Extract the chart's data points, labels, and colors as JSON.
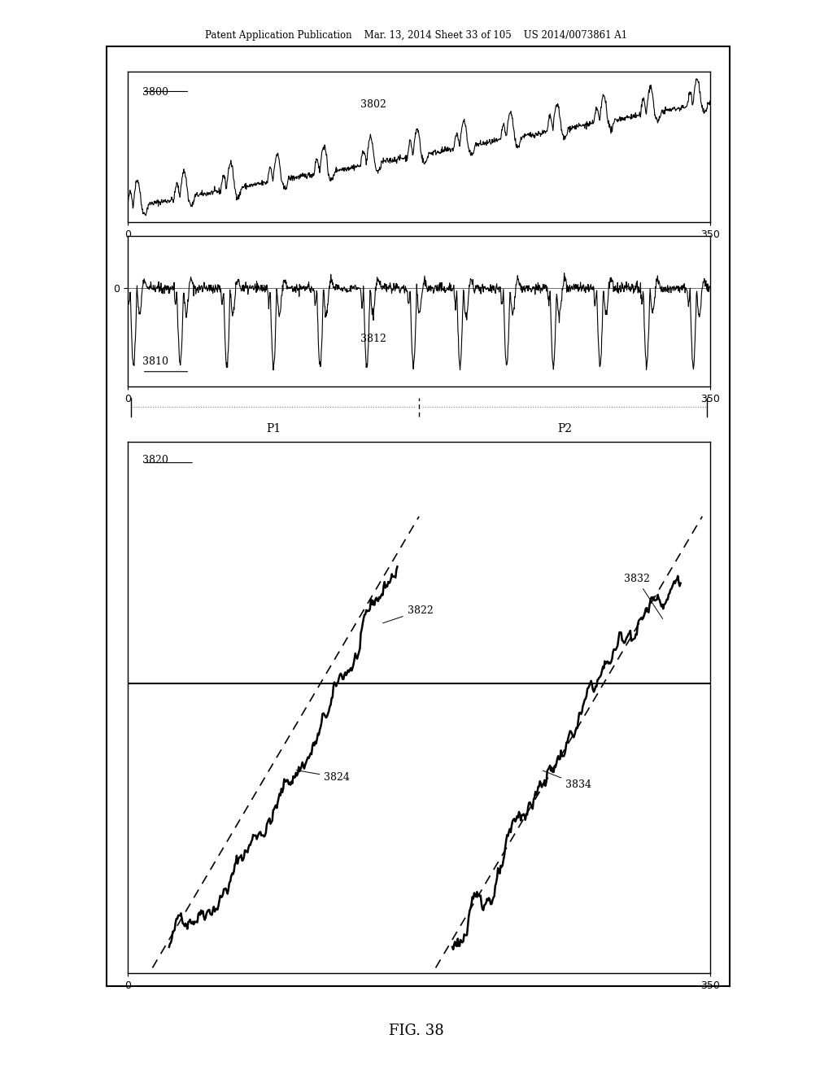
{
  "patent_header": "Patent Application Publication    Mar. 13, 2014 Sheet 33 of 105    US 2014/0073861 A1",
  "fig_title": "FIG. 38",
  "panel1_label": "3800",
  "panel1_signal_label": "3802",
  "panel2_label": "3810",
  "panel2_signal_label": "3812",
  "panel3_label": "3820",
  "label_3822": "3822",
  "label_3824": "3824",
  "label_3832": "3832",
  "label_3834": "3834",
  "p1_label": "P1",
  "p2_label": "P2",
  "xmax": 350,
  "p_split": 175,
  "line_color": "#000000",
  "bg_color": "#ffffff"
}
